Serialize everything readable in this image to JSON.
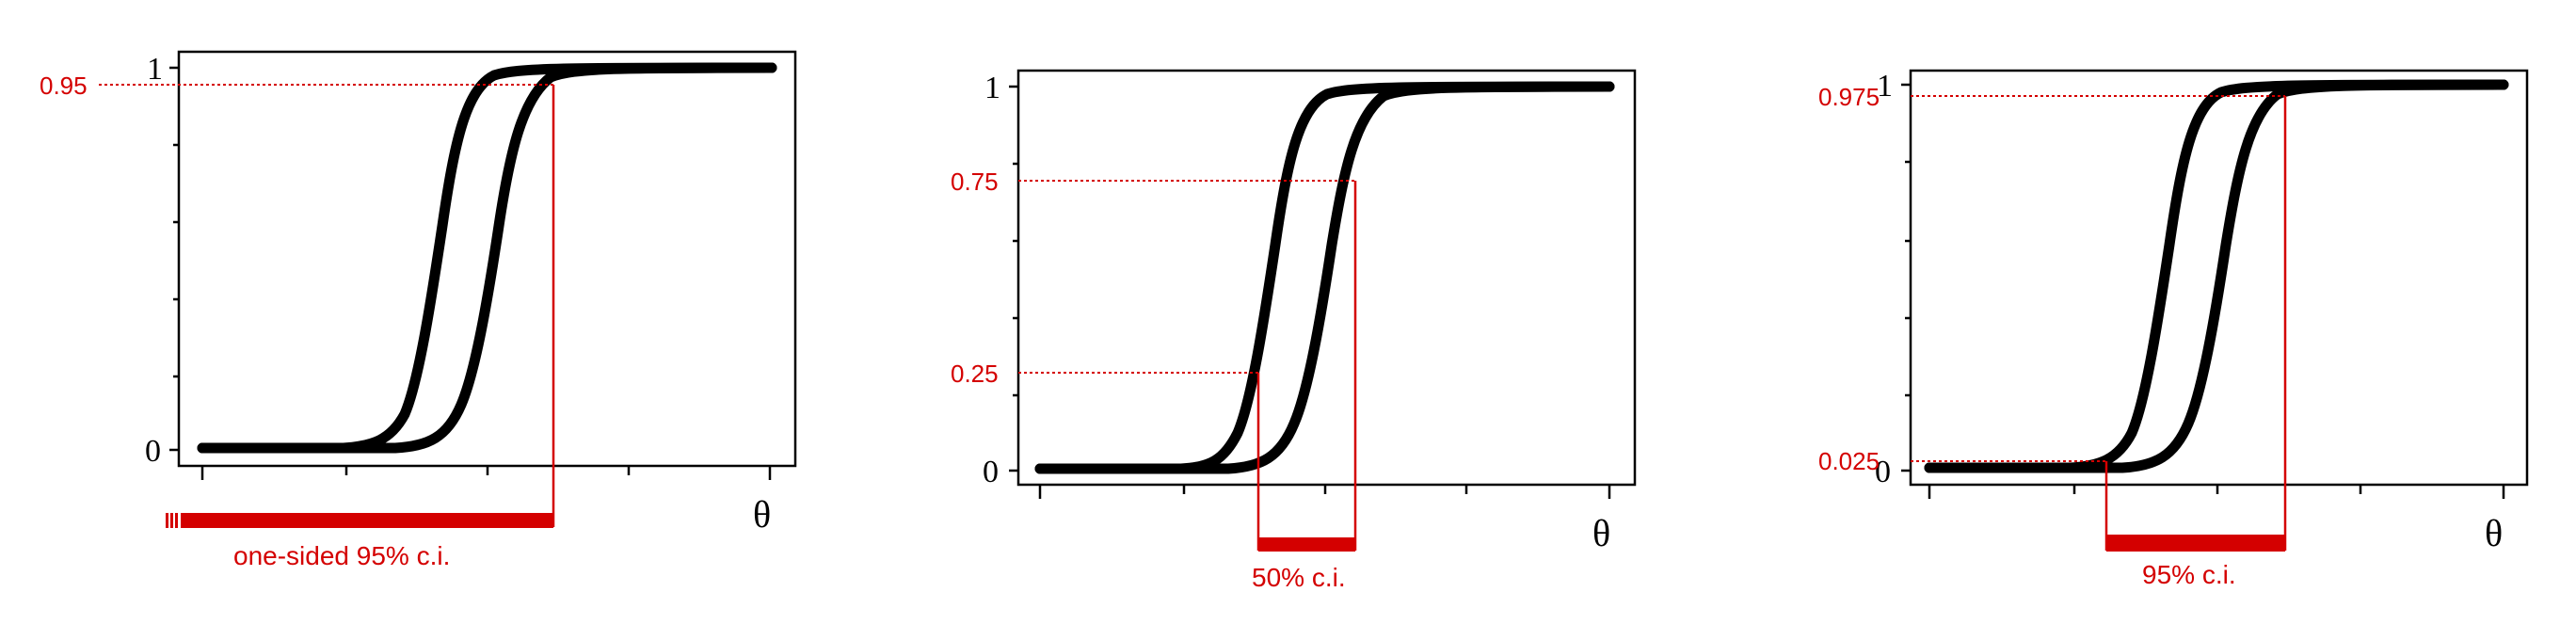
{
  "colors": {
    "accent": "#d40000",
    "curve": "#000000",
    "frame": "#000000"
  },
  "panels": [
    {
      "id": "one-sided",
      "y_tick_labels": [
        "1",
        "0"
      ],
      "x_axis_label": "θ",
      "marked_levels": [
        "0.95"
      ],
      "interval_label": "one-sided 95% c.i."
    },
    {
      "id": "50-percent",
      "y_tick_labels": [
        "1",
        "0"
      ],
      "x_axis_label": "θ",
      "marked_levels": [
        "0.75",
        "0.25"
      ],
      "interval_label": "50% c.i."
    },
    {
      "id": "95-percent",
      "y_tick_labels": [
        "1",
        "0"
      ],
      "x_axis_label": "θ",
      "marked_levels": [
        "0.975",
        "0.025"
      ],
      "interval_label": "95% c.i."
    }
  ]
}
